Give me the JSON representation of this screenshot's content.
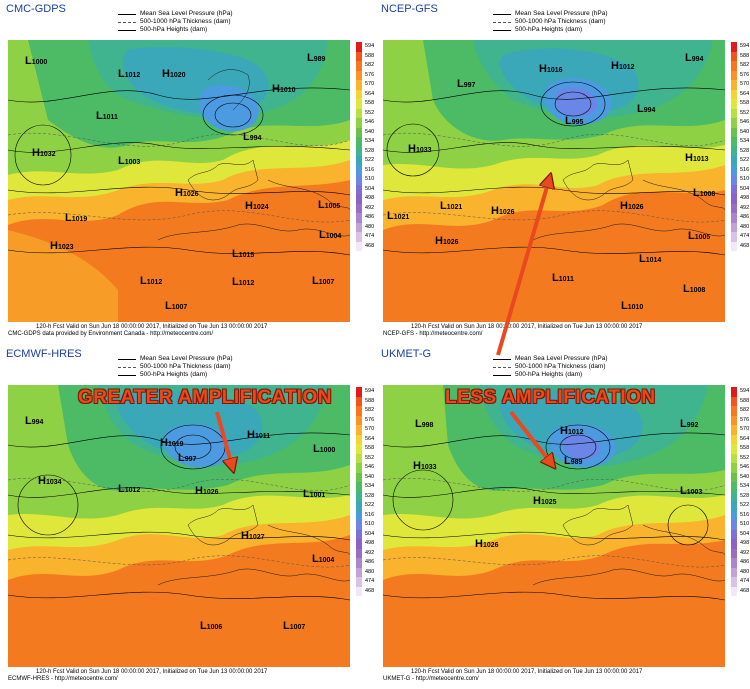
{
  "legend": {
    "mslp": "Mean Sea Level Pressure (hPa)",
    "thickness": "500-1000 hPa Thickness (dam)",
    "heights": "500-hPa Heights (dam)"
  },
  "colorbar": {
    "labels": [
      "594",
      "588",
      "582",
      "576",
      "570",
      "564",
      "558",
      "552",
      "546",
      "540",
      "534",
      "528",
      "522",
      "516",
      "510",
      "504",
      "498",
      "492",
      "486",
      "480",
      "474",
      "468"
    ],
    "colors": [
      "#e21a1a",
      "#f2551c",
      "#f7771f",
      "#fa9525",
      "#f9b32c",
      "#f4d432",
      "#dfe83a",
      "#b8e03f",
      "#8fd144",
      "#6bc24a",
      "#4dbb66",
      "#3fb48f",
      "#3aa8b8",
      "#4c9be0",
      "#6a86e6",
      "#7e6fd8",
      "#8c62c6",
      "#9a6dc0",
      "#ab86c9",
      "#c2a3d6",
      "#d9c2e6",
      "#f2e8f7"
    ]
  },
  "panels": [
    {
      "title": "CMC-GDPS",
      "footer_line1": "120-h Fcst Valid on Sun Jun 18 00:00:00 2017, Initialized on Tue Jun 13 00:00:00 2017",
      "footer_line2": "CMC-GDPS data provided by Environment Canada - http://meteocentre.com/",
      "symbols": [
        {
          "t": "L",
          "n": "1000"
        },
        {
          "t": "L",
          "n": "1012"
        },
        {
          "t": "H",
          "n": "1020"
        },
        {
          "t": "L",
          "n": "989"
        },
        {
          "t": "L",
          "n": "1011"
        },
        {
          "t": "H",
          "n": "1010"
        },
        {
          "t": "L",
          "n": "994"
        },
        {
          "t": "H",
          "n": "1032"
        },
        {
          "t": "L",
          "n": "1003"
        },
        {
          "t": "L",
          "n": "1019"
        },
        {
          "t": "H",
          "n": "1026"
        },
        {
          "t": "H",
          "n": "1024"
        },
        {
          "t": "L",
          "n": "1005"
        },
        {
          "t": "H",
          "n": "1023"
        },
        {
          "t": "L",
          "n": "1004"
        },
        {
          "t": "L",
          "n": "1015"
        },
        {
          "t": "L",
          "n": "1012"
        },
        {
          "t": "L",
          "n": "1012"
        },
        {
          "t": "L",
          "n": "1007"
        },
        {
          "t": "L",
          "n": "1007"
        }
      ]
    },
    {
      "title": "NCEP-GFS",
      "footer_line1": "120-h Fcst Valid on Sun Jun 18 00:00:00 2017, Initialized on Tue Jun 13 00:00:00 2017",
      "footer_line2": "NCEP-GFS - http://meteocentre.com/",
      "symbols": [
        {
          "t": "H",
          "n": "1016"
        },
        {
          "t": "H",
          "n": "1012"
        },
        {
          "t": "L",
          "n": "994"
        },
        {
          "t": "L",
          "n": "997"
        },
        {
          "t": "L",
          "n": "995"
        },
        {
          "t": "L",
          "n": "994"
        },
        {
          "t": "H",
          "n": "1033"
        },
        {
          "t": "H",
          "n": "1013"
        },
        {
          "t": "L",
          "n": "1008"
        },
        {
          "t": "L",
          "n": "1021"
        },
        {
          "t": "L",
          "n": "1021"
        },
        {
          "t": "H",
          "n": "1026"
        },
        {
          "t": "H",
          "n": "1026"
        },
        {
          "t": "L",
          "n": "1005"
        },
        {
          "t": "H",
          "n": "1026"
        },
        {
          "t": "L",
          "n": "1014"
        },
        {
          "t": "L",
          "n": "1011"
        },
        {
          "t": "L",
          "n": "1010"
        },
        {
          "t": "L",
          "n": "1008"
        }
      ]
    },
    {
      "title": "ECMWF-HRES",
      "footer_line1": "120-h Fcst Valid on Sun Jun 18 00:00:00 2017, Initialized on Tue Jun 13 00:00:00 2017",
      "footer_line2": "ECMWF-HRES - http://meteocentre.com/",
      "symbols": [
        {
          "t": "L",
          "n": "994"
        },
        {
          "t": "H",
          "n": "1019"
        },
        {
          "t": "H",
          "n": "1011"
        },
        {
          "t": "L",
          "n": "997"
        },
        {
          "t": "L",
          "n": "1000"
        },
        {
          "t": "H",
          "n": "1034"
        },
        {
          "t": "L",
          "n": "1012"
        },
        {
          "t": "H",
          "n": "1026"
        },
        {
          "t": "L",
          "n": "1001"
        },
        {
          "t": "H",
          "n": "1027"
        },
        {
          "t": "L",
          "n": "1004"
        },
        {
          "t": "L",
          "n": "1006"
        },
        {
          "t": "L",
          "n": "1007"
        }
      ]
    },
    {
      "title": "UKMET-G",
      "footer_line1": "120-h Fcst Valid on Sun Jun 18 00:00:00 2017, Initialized on Tue Jun 13 00:00:00 2017",
      "footer_line2": "UKMET-G - http://meteocentre.com/",
      "symbols": [
        {
          "t": "L",
          "n": "998"
        },
        {
          "t": "H",
          "n": "1012"
        },
        {
          "t": "L",
          "n": "992"
        },
        {
          "t": "L",
          "n": "989"
        },
        {
          "t": "H",
          "n": "1033"
        },
        {
          "t": "L",
          "n": "1003"
        },
        {
          "t": "H",
          "n": "1025"
        },
        {
          "t": "H",
          "n": "1026"
        }
      ]
    }
  ],
  "annotations": {
    "greater": "GREATER AMPLIFICATION",
    "less": "LESS AMPLIFICATION",
    "arrow_color": "#e8491f"
  }
}
